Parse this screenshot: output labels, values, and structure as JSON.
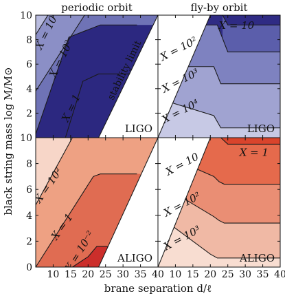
{
  "chart_data": {
    "type": "area",
    "layout": "2x2 grid of contour-region panels",
    "column_titles": [
      "periodic orbit",
      "fly-by orbit"
    ],
    "xlabel": "brane separation d/ℓ",
    "ylabel": "black string mass log M/M⊙",
    "xlim": [
      5,
      40
    ],
    "ylim": [
      0,
      10
    ],
    "xticks": [
      10,
      15,
      20,
      25,
      30,
      35,
      40
    ],
    "yticks": [
      0,
      2,
      4,
      6,
      8,
      10
    ],
    "panels": [
      {
        "row": 0,
        "col": 0,
        "detector": "LIGO",
        "orbit": "periodic orbit",
        "colors": [
          "#b9bcdf",
          "#8b8fc6",
          "#6f73b6",
          "#2c2880"
        ],
        "white_region_label": "stability limit",
        "boundaries": [
          {
            "x": [
              5,
              8.5
            ],
            "y": [
              8.4,
              10
            ]
          },
          {
            "x": [
              5,
              19,
              34
            ],
            "y": [
              3.8,
              10,
              10
            ]
          },
          {
            "x": [
              5,
              14.5,
              23.5,
              34
            ],
            "y": [
              0.3,
              8.2,
              9.2,
              9.2
            ]
          },
          {
            "x": [
              13.5,
              18.5,
              23,
              34
            ],
            "y": [
              0,
              4.6,
              5.2,
              5.2
            ]
          }
        ],
        "stability_edge": {
          "x": [
            23,
            40
          ],
          "y": [
            0,
            10
          ]
        },
        "labels": [
          {
            "text": "X = 10⁴",
            "x": 8.4,
            "y": 8.7,
            "angle": -64
          },
          {
            "text": "X = 10²",
            "x": 12.4,
            "y": 6.4,
            "angle": -64
          },
          {
            "text": "X = 1",
            "x": 15.3,
            "y": 2.4,
            "angle": -64
          }
        ]
      },
      {
        "row": 0,
        "col": 1,
        "detector": "LIGO",
        "orbit": "fly-by orbit",
        "colors": [
          "#2f2b84",
          "#5b5eab",
          "#7e82c0",
          "#a0a3d1",
          "#c7c9e5"
        ],
        "boundaries": [
          {
            "x": [
              23.5,
              25,
              40
            ],
            "y": [
              10,
              9.2,
              9.2
            ]
          },
          {
            "x": [
              5,
              22,
              25,
              40
            ],
            "y": [
              9.2,
              9.2,
              7.0,
              7.0
            ]
          },
          {
            "x": [
              5,
              21,
              23,
              40
            ],
            "y": [
              5.8,
              5.8,
              4.4,
              4.4
            ]
          },
          {
            "x": [
              5,
              21,
              23,
              40
            ],
            "y": [
              3.2,
              1.8,
              0.8,
              0.8
            ]
          }
        ],
        "stability_edge": {
          "x": [
            5,
            20
          ],
          "y": [
            0,
            10
          ]
        },
        "labels": [
          {
            "text": "X = 10",
            "x": 27.5,
            "y": 9.1,
            "angle": 0
          },
          {
            "text": "X = 10²",
            "x": 11,
            "y": 7.2,
            "angle": -27
          },
          {
            "text": "X = 10³",
            "x": 11.5,
            "y": 4.6,
            "angle": -27
          },
          {
            "text": "X = 10⁴",
            "x": 11.5,
            "y": 2.1,
            "angle": -27
          }
        ]
      },
      {
        "row": 1,
        "col": 0,
        "detector": "ALIGO",
        "orbit": "periodic orbit",
        "colors": [
          "#f7d6c8",
          "#eea183",
          "#e06c52",
          "#cc2e2b"
        ],
        "boundaries": [
          {
            "x": [
              5,
              15.5,
              34
            ],
            "y": [
              4.8,
              10,
              10
            ]
          },
          {
            "x": [
              5,
              21.5,
              23.5,
              34
            ],
            "y": [
              0,
              7.0,
              7.2,
              7.2
            ]
          },
          {
            "x": [
              15.5,
              20,
              22.5,
              34
            ],
            "y": [
              0,
              0.8,
              1.6,
              1.6
            ]
          },
          {
            "x": [
              18.8,
              40
            ],
            "y": [
              0,
              0
            ]
          }
        ],
        "stability_edge": {
          "x": [
            23,
            40
          ],
          "y": [
            0,
            10
          ]
        },
        "labels": [
          {
            "text": "X = 10²",
            "x": 8.8,
            "y": 6.3,
            "angle": -55
          },
          {
            "text": "X = 1",
            "x": 12.7,
            "y": 3.1,
            "angle": -55
          },
          {
            "text": "X = 10⁻²",
            "x": 17.7,
            "y": 1.2,
            "angle": -58
          }
        ]
      },
      {
        "row": 1,
        "col": 1,
        "detector": "ALIGO",
        "orbit": "fly-by orbit",
        "colors": [
          "#d9442c",
          "#e56a4c",
          "#ea8e74",
          "#f0b9a5",
          "#f8ddd1"
        ],
        "boundaries": [
          {
            "x": [
              5,
              23,
              25,
              40
            ],
            "y": [
              10,
              10,
              9.5,
              9.5
            ]
          },
          {
            "x": [
              5,
              21,
              22.5,
              24,
              40
            ],
            "y": [
              8.9,
              7.0,
              6.6,
              6.4,
              6.4
            ]
          },
          {
            "x": [
              5,
              21,
              22.5,
              24,
              40
            ],
            "y": [
              6.5,
              3.9,
              3.6,
              3.4,
              3.4
            ]
          },
          {
            "x": [
              5,
              20,
              22,
              40
            ],
            "y": [
              4.0,
              1.0,
              0.7,
              0.7
            ]
          }
        ],
        "stability_edge": {
          "x": [
            5,
            20
          ],
          "y": [
            0,
            10
          ]
        },
        "labels": [
          {
            "text": "X = 1",
            "x": 32.5,
            "y": 8.8,
            "angle": 0
          },
          {
            "text": "X = 10",
            "x": 12,
            "y": 7.9,
            "angle": -28
          },
          {
            "text": "X = 10²",
            "x": 12,
            "y": 4.8,
            "angle": -28
          },
          {
            "text": "X = 10³",
            "x": 12,
            "y": 2.2,
            "angle": -28
          }
        ]
      }
    ]
  }
}
